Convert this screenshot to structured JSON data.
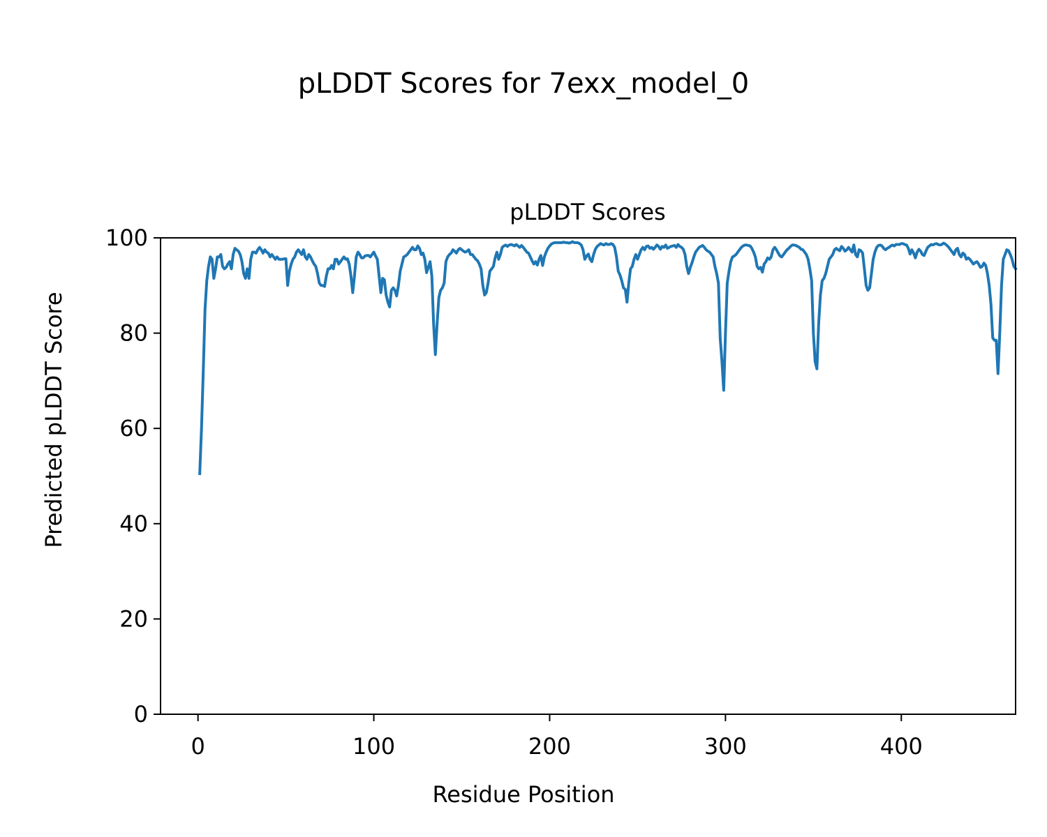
{
  "chart_data": {
    "type": "line",
    "suptitle": "pLDDT Scores for 7exx_model_0",
    "title": "pLDDT Scores",
    "xlabel": "Residue Position",
    "ylabel": "Predicted pLDDT Score",
    "xlim": [
      -21.3,
      465
    ],
    "ylim": [
      0,
      100
    ],
    "x_ticks": [
      0,
      100,
      200,
      300,
      400
    ],
    "y_ticks": [
      0,
      20,
      40,
      60,
      80,
      100
    ],
    "grid": false,
    "line_color": "#1f77b4",
    "series": [
      {
        "x_start": 1,
        "y": [
          50.5,
          60,
          72,
          85,
          91,
          94,
          96,
          95.5,
          91.5,
          93.5,
          96,
          96,
          96.5,
          94,
          93.5,
          93.8,
          94.5,
          95,
          93.5,
          96.5,
          97.8,
          97.5,
          97.2,
          96.5,
          95,
          92.5,
          91.5,
          93.5,
          91.5,
          95.5,
          97,
          97,
          96.8,
          97.5,
          98,
          97.5,
          96.8,
          97.5,
          97,
          96.8,
          96,
          96.5,
          96,
          95.5,
          96,
          95.5,
          95.5,
          95.5,
          95.6,
          95.6,
          90,
          93,
          94.5,
          95.5,
          96,
          97,
          97.5,
          97,
          96.5,
          97.5,
          96,
          95.5,
          96.5,
          96,
          95.2,
          94.5,
          94,
          92.5,
          90.5,
          90,
          90,
          89.8,
          92,
          93.5,
          93.5,
          94.2,
          93.5,
          95.5,
          95.5,
          94.5,
          95,
          95.5,
          96,
          95.5,
          95.6,
          94.5,
          92,
          88.5,
          92,
          96,
          97,
          96.5,
          95.8,
          95.8,
          96.2,
          96.3,
          96.3,
          96,
          96.5,
          97,
          96.2,
          95.5,
          92,
          88.5,
          91.5,
          91.2,
          88,
          86.5,
          85.5,
          89,
          89.5,
          89,
          87.8,
          90,
          93,
          94.5,
          96,
          96.2,
          96.5,
          97,
          97.5,
          98,
          97.5,
          97.5,
          98.3,
          97.8,
          96.5,
          96.8,
          95.5,
          92.7,
          93.8,
          95,
          92,
          82,
          75.5,
          82,
          87.5,
          89,
          89.5,
          90.5,
          95,
          96,
          96.5,
          96.8,
          97.5,
          97.2,
          96.8,
          97.5,
          97.8,
          97.5,
          97.2,
          97,
          97.2,
          97.5,
          96.5,
          96.5,
          96,
          95.5,
          95.2,
          94.5,
          93.5,
          90,
          88,
          88.5,
          90.5,
          93,
          93.5,
          94,
          95.8,
          97,
          95.5,
          96.5,
          98,
          98.3,
          98.5,
          98.2,
          98.5,
          98.6,
          98.5,
          98.3,
          98.6,
          98.3,
          98,
          98.4,
          98,
          97.5,
          97,
          96.8,
          96,
          95.2,
          94.5,
          95,
          94.3,
          95.5,
          96.3,
          94.2,
          96,
          97,
          97.8,
          98.3,
          98.7,
          98.9,
          99,
          99,
          99,
          99,
          99,
          99.1,
          99,
          99,
          98.9,
          99,
          99.2,
          99,
          99,
          99,
          98.8,
          98.5,
          97.5,
          95.5,
          96.2,
          96.6,
          95.5,
          95,
          96.5,
          97.6,
          98.2,
          98.5,
          98.8,
          98.6,
          98.5,
          98.8,
          98.6,
          98.6,
          98.8,
          98.6,
          98,
          96,
          93,
          92.2,
          91,
          89.5,
          89.2,
          86.5,
          90.5,
          93.5,
          94,
          95.5,
          96.5,
          95.5,
          96.5,
          97.5,
          98,
          97.5,
          98.2,
          98.3,
          97.8,
          98,
          97.6,
          98,
          98.5,
          98.2,
          97.6,
          98.2,
          98,
          98.5,
          97.8,
          98,
          98.2,
          98.3,
          98.4,
          98,
          98.6,
          98.2,
          98,
          97.6,
          96.5,
          94,
          92.5,
          93.8,
          94.8,
          96,
          97,
          97.5,
          98,
          98.2,
          98.4,
          98,
          97.5,
          97.2,
          97,
          96.5,
          96,
          94,
          92.5,
          90.5,
          79,
          74,
          68,
          80,
          90.5,
          93,
          95,
          96,
          96.2,
          96.5,
          97,
          97.5,
          98,
          98.3,
          98.5,
          98.5,
          98.4,
          98.3,
          97.8,
          97,
          96,
          94,
          93.5,
          93.8,
          92.8,
          94.5,
          95,
          95.8,
          95.5,
          96,
          97.5,
          98,
          97.5,
          96.8,
          96.2,
          96,
          96.5,
          97,
          97.5,
          97.8,
          98.2,
          98.5,
          98.5,
          98.4,
          98.2,
          98,
          97.6,
          97.5,
          97,
          96.5,
          95.5,
          93.5,
          91,
          80,
          74,
          72.5,
          82,
          88,
          91,
          91.5,
          92.5,
          94,
          95.5,
          96,
          96.5,
          97.5,
          97.8,
          97.5,
          97.3,
          98.2,
          97.8,
          97.2,
          97.5,
          98,
          97.5,
          97,
          98.5,
          96.5,
          96,
          97.5,
          97.3,
          96.8,
          93.5,
          90,
          89,
          89.5,
          92.5,
          95.5,
          97,
          98,
          98.4,
          98.5,
          98.3,
          97.8,
          97.5,
          97.8,
          98,
          98.3,
          98.5,
          98.3,
          98.6,
          98.6,
          98.6,
          98.8,
          98.8,
          98.6,
          98.5,
          97.8,
          96.6,
          97.5,
          96.8,
          95.8,
          97,
          97.6,
          97.2,
          96.5,
          96.3,
          97.2,
          98,
          98.3,
          98.6,
          98.5,
          98.7,
          98.8,
          98.6,
          98.5,
          98.6,
          98.9,
          98.7,
          98.4,
          98,
          97.5,
          97,
          96.5,
          97.5,
          97.8,
          96.5,
          96,
          96.8,
          96.5,
          95.5,
          95.8,
          95.5,
          95,
          94.5,
          94.8,
          95,
          94.5,
          93.8,
          94,
          94.7,
          94.2,
          92.5,
          90,
          86,
          79,
          78.5,
          78.5,
          71.5,
          80,
          90,
          95.5,
          96.5,
          97.5,
          97.3,
          96.5,
          95.5,
          94,
          93.5
        ]
      }
    ]
  }
}
